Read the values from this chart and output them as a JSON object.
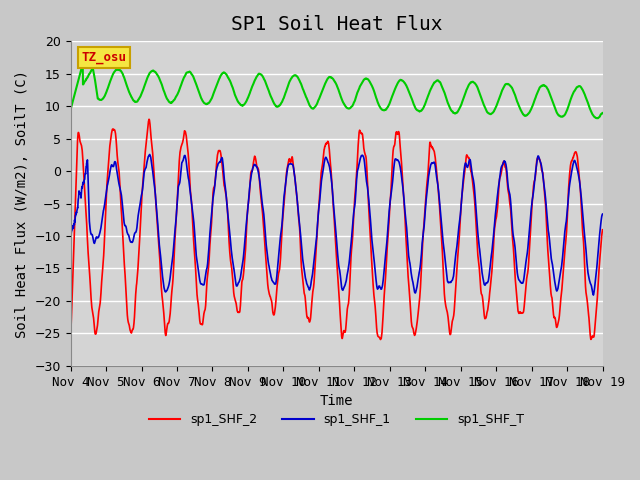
{
  "title": "SP1 Soil Heat Flux",
  "ylabel": "Soil Heat Flux (W/m2), SoilT (C)",
  "xlabel": "Time",
  "ylim": [
    -30,
    20
  ],
  "xlim": [
    0,
    15
  ],
  "bg_color": "#e8e8e8",
  "plot_bg_color": "#d8d8d8",
  "grid_color": "#ffffff",
  "tz_label": "TZ_osu",
  "tz_bg": "#f5e642",
  "tz_border": "#c8a000",
  "line_red": "#ff0000",
  "line_blue": "#0000cc",
  "line_green": "#00cc00",
  "legend_labels": [
    "sp1_SHF_2",
    "sp1_SHF_1",
    "sp1_SHF_T"
  ],
  "x_tick_labels": [
    "Nov 4",
    "Nov 5",
    "Nov 6",
    "Nov 7",
    "Nov 8",
    "Nov 9",
    "Nov 10",
    "Nov 11",
    "Nov 12",
    "Nov 13",
    "Nov 14",
    "Nov 15",
    "Nov 16",
    "Nov 17",
    "Nov 18",
    "Nov 19"
  ],
  "title_fontsize": 14,
  "label_fontsize": 10,
  "tick_fontsize": 9
}
